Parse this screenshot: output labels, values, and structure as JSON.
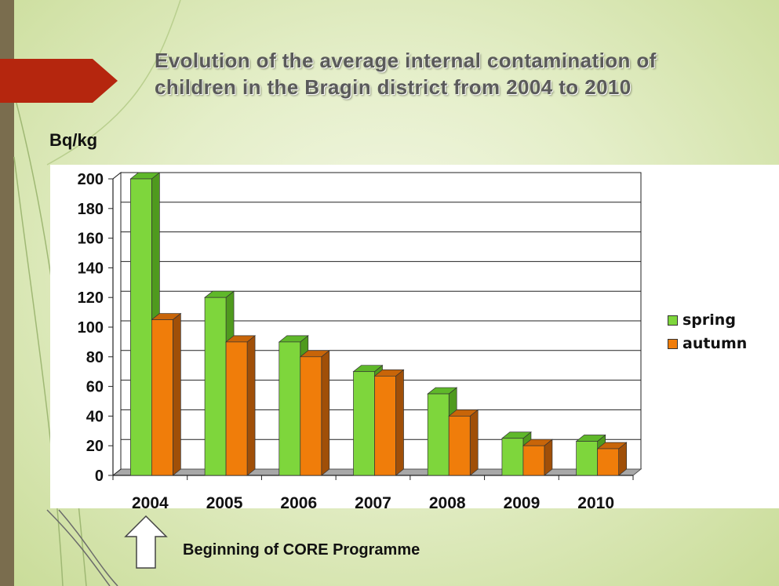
{
  "slide": {
    "title": "Evolution of the average internal contamination of children in the Bragin district from 2004 to 2010",
    "annotation": "Beginning of CORE Programme",
    "accent_color": "#b5260e"
  },
  "chart_data": {
    "type": "bar",
    "ylabel": "Bq/kg",
    "xlabel": "",
    "categories": [
      "2004",
      "2005",
      "2006",
      "2007",
      "2008",
      "2009",
      "2010"
    ],
    "series": [
      {
        "name": "spring",
        "values": [
          200,
          120,
          90,
          70,
          55,
          25,
          23
        ],
        "color": "#7ed63c",
        "side_color": "#4f9a1e",
        "top_color": "#5fb82a"
      },
      {
        "name": "autumn",
        "values": [
          105,
          90,
          80,
          67,
          40,
          20,
          18
        ],
        "color": "#f07d0a",
        "side_color": "#a04f08",
        "top_color": "#c86509"
      }
    ],
    "ylim": [
      0,
      200
    ],
    "yticks": [
      0,
      20,
      40,
      60,
      80,
      100,
      120,
      140,
      160,
      180,
      200
    ],
    "grid": true,
    "legend_position": "right",
    "three_d": true
  }
}
